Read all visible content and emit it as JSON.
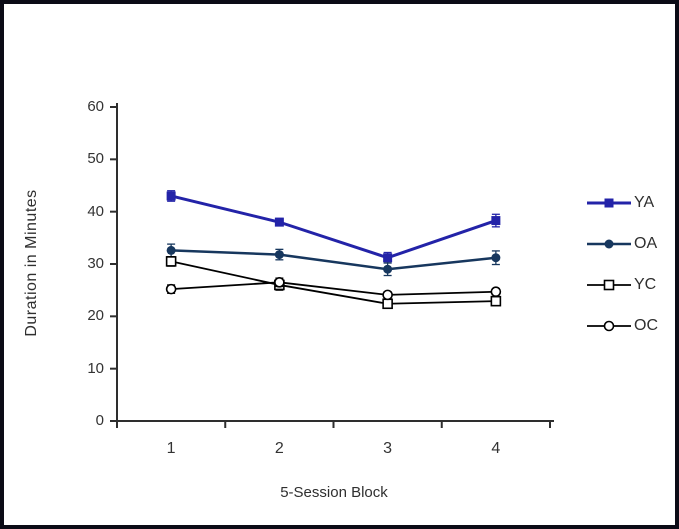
{
  "frame_border_color": "#0b0b16",
  "axis_color": "#2e2e2e",
  "chart_data": {
    "type": "line",
    "title": "",
    "xlabel": "5-Session Block",
    "ylabel": "Duration in Minutes",
    "x_categories": [
      "1",
      "2",
      "3",
      "4"
    ],
    "ytick_labels": [
      "0",
      "10",
      "20",
      "30",
      "40",
      "50",
      "60"
    ],
    "ylim": [
      0,
      60
    ],
    "ytick_interval": 10,
    "grid": false,
    "legend_position": "right",
    "error_bars": true,
    "series": [
      {
        "name": "YA",
        "marker": "filled-square",
        "color": "#2323A8",
        "line_width": 3,
        "values": [
          43.0,
          38.0,
          31.2,
          38.3
        ],
        "errors": [
          1.0,
          0.7,
          1.0,
          1.2
        ]
      },
      {
        "name": "OA",
        "marker": "filled-circle",
        "color": "#17375E",
        "line_width": 2.5,
        "values": [
          32.6,
          31.8,
          29.0,
          31.2
        ],
        "errors": [
          1.2,
          1.0,
          1.2,
          1.3
        ]
      },
      {
        "name": "YC",
        "marker": "open-square",
        "color": "#000000",
        "line_width": 1.8,
        "values": [
          30.5,
          26.0,
          22.4,
          22.9
        ],
        "errors": [
          0.9,
          1.0,
          0.8,
          0.7
        ]
      },
      {
        "name": "OC",
        "marker": "open-circle",
        "color": "#000000",
        "line_width": 1.8,
        "values": [
          25.2,
          26.5,
          24.1,
          24.7
        ],
        "errors": [
          0.8,
          0.8,
          0.6,
          0.6
        ]
      }
    ]
  }
}
